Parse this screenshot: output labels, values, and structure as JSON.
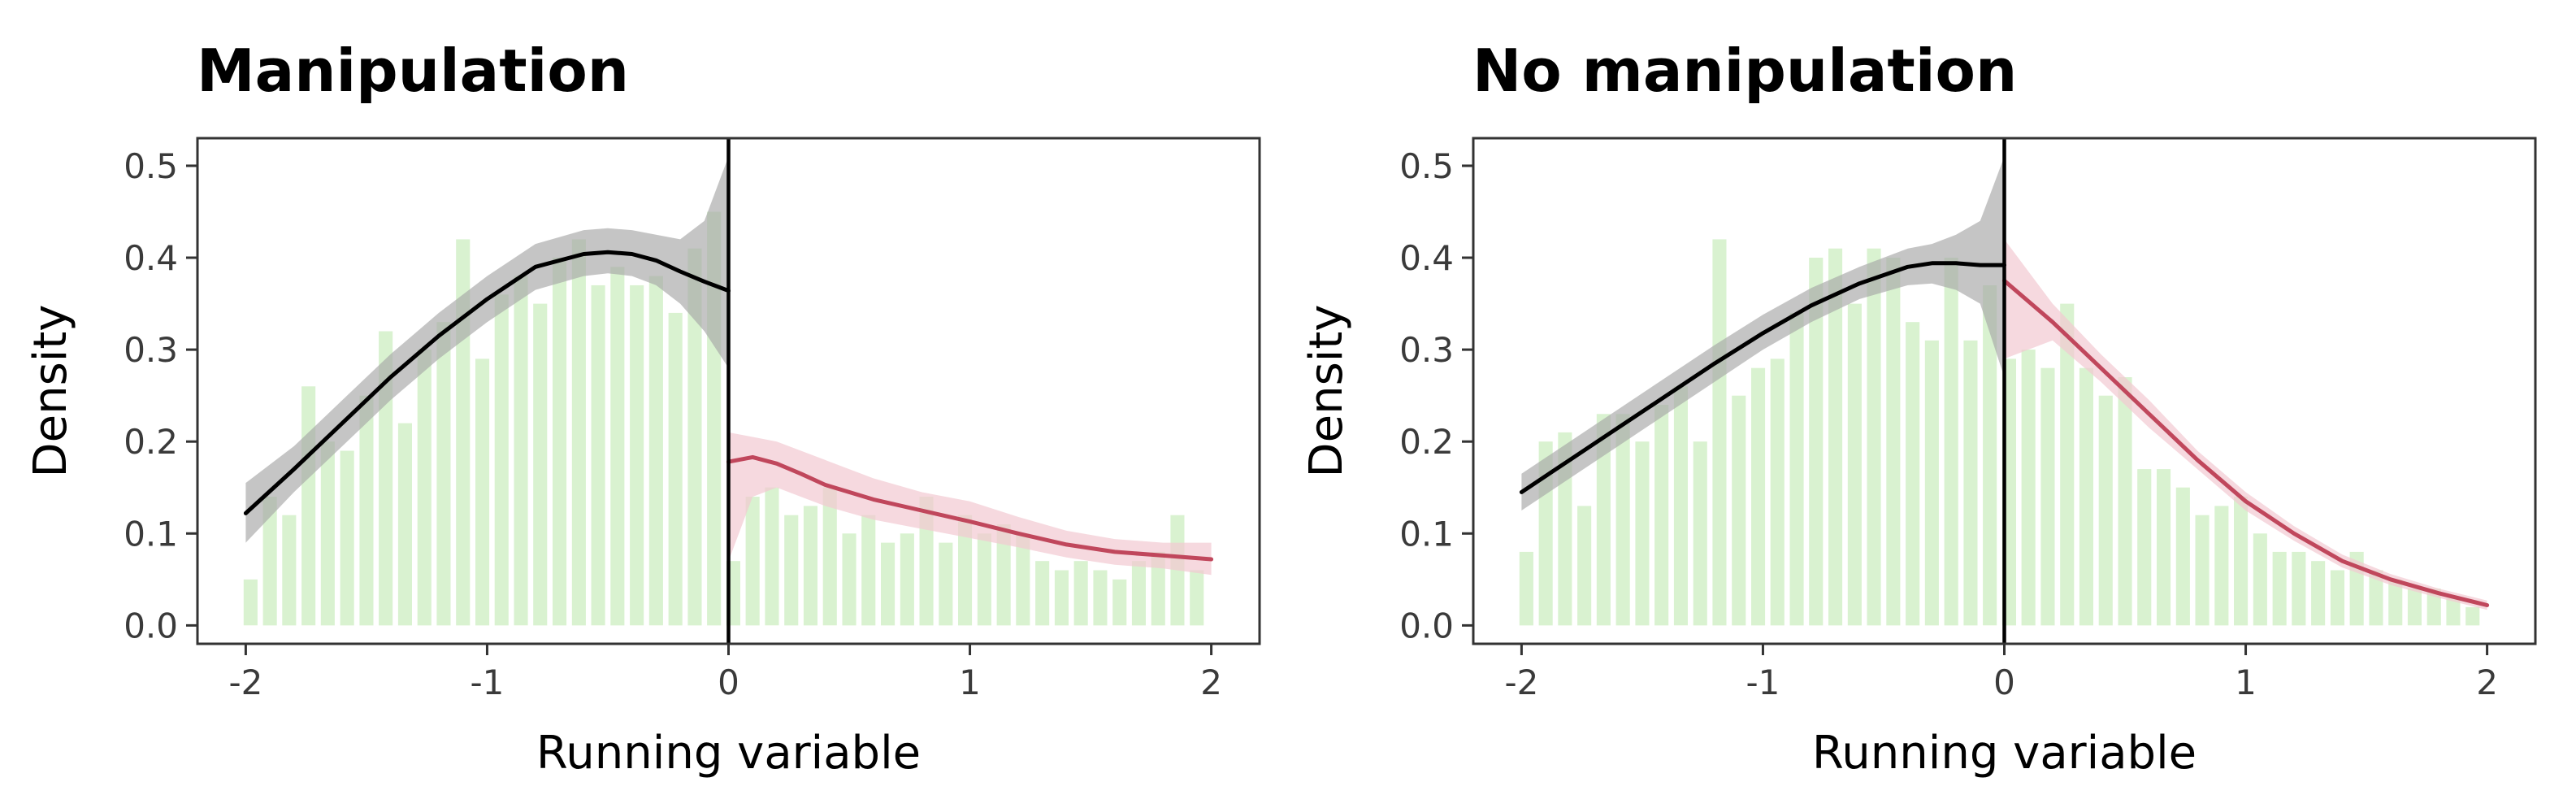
{
  "colors": {
    "histogram": "#d9f2d0",
    "left_line": "#000000",
    "left_band": "#a6a6a6",
    "right_line": "#c0475c",
    "right_band": "#f2c9d1",
    "cutoff": "#000000",
    "frame": "#333333"
  },
  "chart_data": [
    {
      "type": "bar",
      "title": "Manipulation",
      "xlabel": "Running variable",
      "ylabel": "Density",
      "xlim": [
        -2.2,
        2.2
      ],
      "ylim": [
        -0.02,
        0.53
      ],
      "x_ticks": [
        "-2",
        "-1",
        "0",
        "1",
        "2"
      ],
      "y_ticks": [
        "0.0",
        "0.1",
        "0.2",
        "0.3",
        "0.4",
        "0.5"
      ],
      "grid": false,
      "cutoff": 0,
      "histogram": {
        "bin_centers": [
          -1.98,
          -1.9,
          -1.82,
          -1.74,
          -1.66,
          -1.58,
          -1.5,
          -1.42,
          -1.34,
          -1.26,
          -1.18,
          -1.1,
          -1.02,
          -0.94,
          -0.86,
          -0.78,
          -0.7,
          -0.62,
          -0.54,
          -0.46,
          -0.38,
          -0.3,
          -0.22,
          -0.14,
          -0.06,
          0.02,
          0.1,
          0.18,
          0.26,
          0.34,
          0.42,
          0.5,
          0.58,
          0.66,
          0.74,
          0.82,
          0.9,
          0.98,
          1.06,
          1.14,
          1.22,
          1.3,
          1.38,
          1.46,
          1.54,
          1.62,
          1.7,
          1.78,
          1.86,
          1.94
        ],
        "values": [
          0.05,
          0.14,
          0.12,
          0.26,
          0.2,
          0.19,
          0.25,
          0.32,
          0.22,
          0.3,
          0.33,
          0.42,
          0.29,
          0.36,
          0.38,
          0.35,
          0.4,
          0.42,
          0.37,
          0.39,
          0.37,
          0.38,
          0.34,
          0.41,
          0.45,
          0.07,
          0.14,
          0.15,
          0.12,
          0.13,
          0.15,
          0.1,
          0.12,
          0.09,
          0.1,
          0.14,
          0.09,
          0.12,
          0.1,
          0.11,
          0.1,
          0.07,
          0.06,
          0.07,
          0.06,
          0.05,
          0.07,
          0.08,
          0.12,
          0.06
        ]
      },
      "series": [
        {
          "side": "left",
          "x": [
            -2.0,
            -1.8,
            -1.6,
            -1.4,
            -1.2,
            -1.0,
            -0.8,
            -0.6,
            -0.5,
            -0.4,
            -0.3,
            -0.2,
            -0.1,
            0.0
          ],
          "y": [
            0.122,
            0.17,
            0.22,
            0.27,
            0.315,
            0.355,
            0.39,
            0.404,
            0.406,
            0.404,
            0.397,
            0.385,
            0.374,
            0.364
          ],
          "lower": [
            0.09,
            0.145,
            0.195,
            0.245,
            0.29,
            0.33,
            0.365,
            0.38,
            0.383,
            0.38,
            0.37,
            0.35,
            0.32,
            0.28
          ],
          "upper": [
            0.155,
            0.195,
            0.245,
            0.295,
            0.34,
            0.38,
            0.415,
            0.43,
            0.432,
            0.43,
            0.425,
            0.42,
            0.44,
            0.51
          ]
        },
        {
          "side": "right",
          "x": [
            0.0,
            0.1,
            0.2,
            0.3,
            0.4,
            0.6,
            0.8,
            1.0,
            1.2,
            1.4,
            1.6,
            1.8,
            2.0
          ],
          "y": [
            0.178,
            0.183,
            0.176,
            0.165,
            0.153,
            0.137,
            0.125,
            0.113,
            0.1,
            0.088,
            0.08,
            0.076,
            0.072
          ],
          "lower": [
            0.07,
            0.14,
            0.15,
            0.14,
            0.13,
            0.115,
            0.105,
            0.095,
            0.085,
            0.074,
            0.066,
            0.062,
            0.055
          ],
          "upper": [
            0.21,
            0.205,
            0.2,
            0.19,
            0.18,
            0.16,
            0.145,
            0.135,
            0.118,
            0.103,
            0.094,
            0.09,
            0.09
          ]
        }
      ]
    },
    {
      "type": "bar",
      "title": "No manipulation",
      "xlabel": "Running variable",
      "ylabel": "Density",
      "xlim": [
        -2.2,
        2.2
      ],
      "ylim": [
        -0.02,
        0.53
      ],
      "x_ticks": [
        "-2",
        "-1",
        "0",
        "1",
        "2"
      ],
      "y_ticks": [
        "0.0",
        "0.1",
        "0.2",
        "0.3",
        "0.4",
        "0.5"
      ],
      "grid": false,
      "cutoff": 0,
      "histogram": {
        "bin_centers": [
          -1.98,
          -1.9,
          -1.82,
          -1.74,
          -1.66,
          -1.58,
          -1.5,
          -1.42,
          -1.34,
          -1.26,
          -1.18,
          -1.1,
          -1.02,
          -0.94,
          -0.86,
          -0.78,
          -0.7,
          -0.62,
          -0.54,
          -0.46,
          -0.38,
          -0.3,
          -0.22,
          -0.14,
          -0.06,
          0.02,
          0.1,
          0.18,
          0.26,
          0.34,
          0.42,
          0.5,
          0.58,
          0.66,
          0.74,
          0.82,
          0.9,
          0.98,
          1.06,
          1.14,
          1.22,
          1.3,
          1.38,
          1.46,
          1.54,
          1.62,
          1.7,
          1.78,
          1.86,
          1.94
        ],
        "values": [
          0.08,
          0.2,
          0.21,
          0.13,
          0.23,
          0.23,
          0.2,
          0.24,
          0.26,
          0.2,
          0.42,
          0.25,
          0.28,
          0.29,
          0.34,
          0.4,
          0.41,
          0.35,
          0.41,
          0.4,
          0.33,
          0.31,
          0.4,
          0.31,
          0.37,
          0.29,
          0.3,
          0.28,
          0.35,
          0.28,
          0.25,
          0.27,
          0.17,
          0.17,
          0.15,
          0.12,
          0.13,
          0.14,
          0.1,
          0.08,
          0.08,
          0.07,
          0.06,
          0.08,
          0.06,
          0.05,
          0.04,
          0.04,
          0.03,
          0.02
        ]
      },
      "series": [
        {
          "side": "left",
          "x": [
            -2.0,
            -1.8,
            -1.6,
            -1.4,
            -1.2,
            -1.0,
            -0.8,
            -0.6,
            -0.4,
            -0.3,
            -0.2,
            -0.1,
            0.0
          ],
          "y": [
            0.145,
            0.18,
            0.215,
            0.25,
            0.285,
            0.318,
            0.348,
            0.372,
            0.39,
            0.394,
            0.394,
            0.392,
            0.392
          ],
          "lower": [
            0.125,
            0.16,
            0.195,
            0.23,
            0.265,
            0.3,
            0.33,
            0.355,
            0.37,
            0.372,
            0.365,
            0.35,
            0.27
          ],
          "upper": [
            0.165,
            0.2,
            0.235,
            0.27,
            0.305,
            0.338,
            0.367,
            0.39,
            0.41,
            0.415,
            0.425,
            0.44,
            0.51
          ]
        },
        {
          "side": "right",
          "x": [
            0.0,
            0.2,
            0.4,
            0.6,
            0.8,
            1.0,
            1.2,
            1.4,
            1.6,
            1.8,
            2.0
          ],
          "y": [
            0.375,
            0.33,
            0.28,
            0.23,
            0.18,
            0.135,
            0.1,
            0.07,
            0.05,
            0.035,
            0.022
          ],
          "lower": [
            0.29,
            0.31,
            0.265,
            0.215,
            0.17,
            0.125,
            0.092,
            0.063,
            0.044,
            0.03,
            0.017
          ],
          "upper": [
            0.42,
            0.35,
            0.295,
            0.245,
            0.19,
            0.145,
            0.108,
            0.077,
            0.056,
            0.04,
            0.027
          ]
        }
      ]
    }
  ]
}
